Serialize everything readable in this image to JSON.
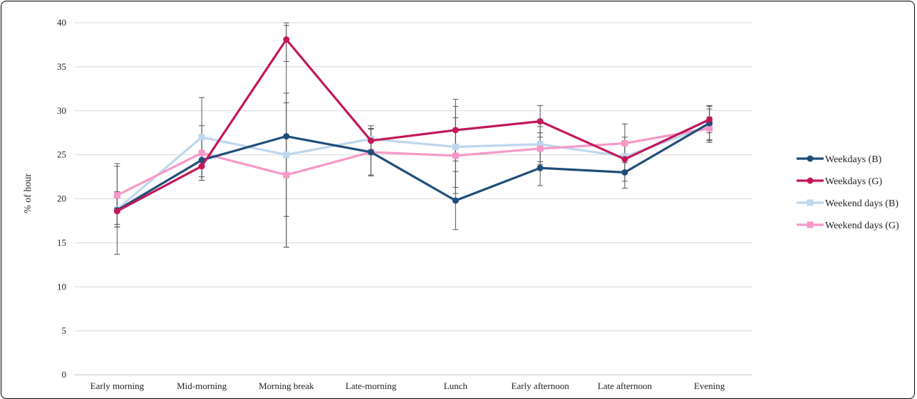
{
  "chart_data": {
    "type": "line",
    "ylabel": "% of hour",
    "ylim": [
      0,
      40
    ],
    "yticks": [
      0,
      5,
      10,
      15,
      20,
      25,
      30,
      35,
      40
    ],
    "grid": true,
    "legend_position": "right",
    "categories": [
      "Early morning",
      "Mid-morning",
      "Morning break",
      "Late-morning",
      "Lunch",
      "Early afternoon",
      "Late afternoon",
      "Evening"
    ],
    "series": [
      {
        "name": "Weekdays (B)",
        "color": "#1f4e79",
        "marker": "circle",
        "values": [
          18.7,
          24.4,
          27.1,
          25.3,
          19.8,
          23.5,
          23.0,
          28.6
        ],
        "errors": [
          5.0,
          2.3,
          12.6,
          2.6,
          3.3,
          2.0,
          1.8,
          2.0
        ]
      },
      {
        "name": "Weekdays (G)",
        "color": "#c2185b",
        "marker": "circle",
        "values": [
          18.6,
          23.7,
          38.1,
          26.6,
          27.8,
          28.8,
          24.5,
          29.0
        ],
        "errors": [
          1.5,
          1.6,
          2.5,
          1.4,
          3.5,
          1.8,
          2.5,
          1.5
        ]
      },
      {
        "name": "Weekend days (B)",
        "color": "#bdd7ee",
        "marker": "square",
        "values": [
          18.8,
          27.0,
          25.0,
          26.8,
          25.9,
          26.2,
          24.8,
          28.3
        ],
        "errors": [
          2.0,
          4.5,
          7.0,
          1.5,
          4.6,
          2.0,
          1.6,
          1.9
        ]
      },
      {
        "name": "Weekend days (G)",
        "color": "#f799c8",
        "marker": "square",
        "values": [
          20.4,
          25.2,
          22.7,
          25.3,
          24.9,
          25.7,
          26.3,
          28.0
        ],
        "errors": [
          3.6,
          3.1,
          8.2,
          2.7,
          4.3,
          1.8,
          2.2,
          1.3
        ]
      }
    ]
  }
}
